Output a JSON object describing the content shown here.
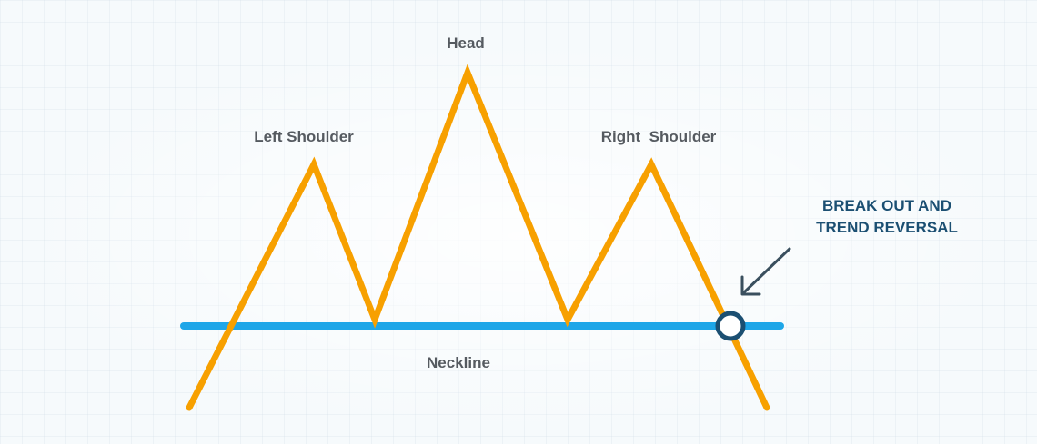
{
  "diagram": {
    "labels": {
      "head": "Head",
      "left_shoulder": "Left Shoulder",
      "right_shoulder": "Right  Shoulder",
      "neckline": "Neckline"
    },
    "callout": {
      "line1": "BREAK OUT AND",
      "line2": "TREND REVERSAL"
    },
    "colors": {
      "price_line": "#f7a000",
      "neckline": "#1ea6e8",
      "callout_text": "#1b4f72",
      "arrow": "#3a4f5e",
      "breakout_marker": "#1b4f72",
      "label_text": "#555a60"
    }
  }
}
